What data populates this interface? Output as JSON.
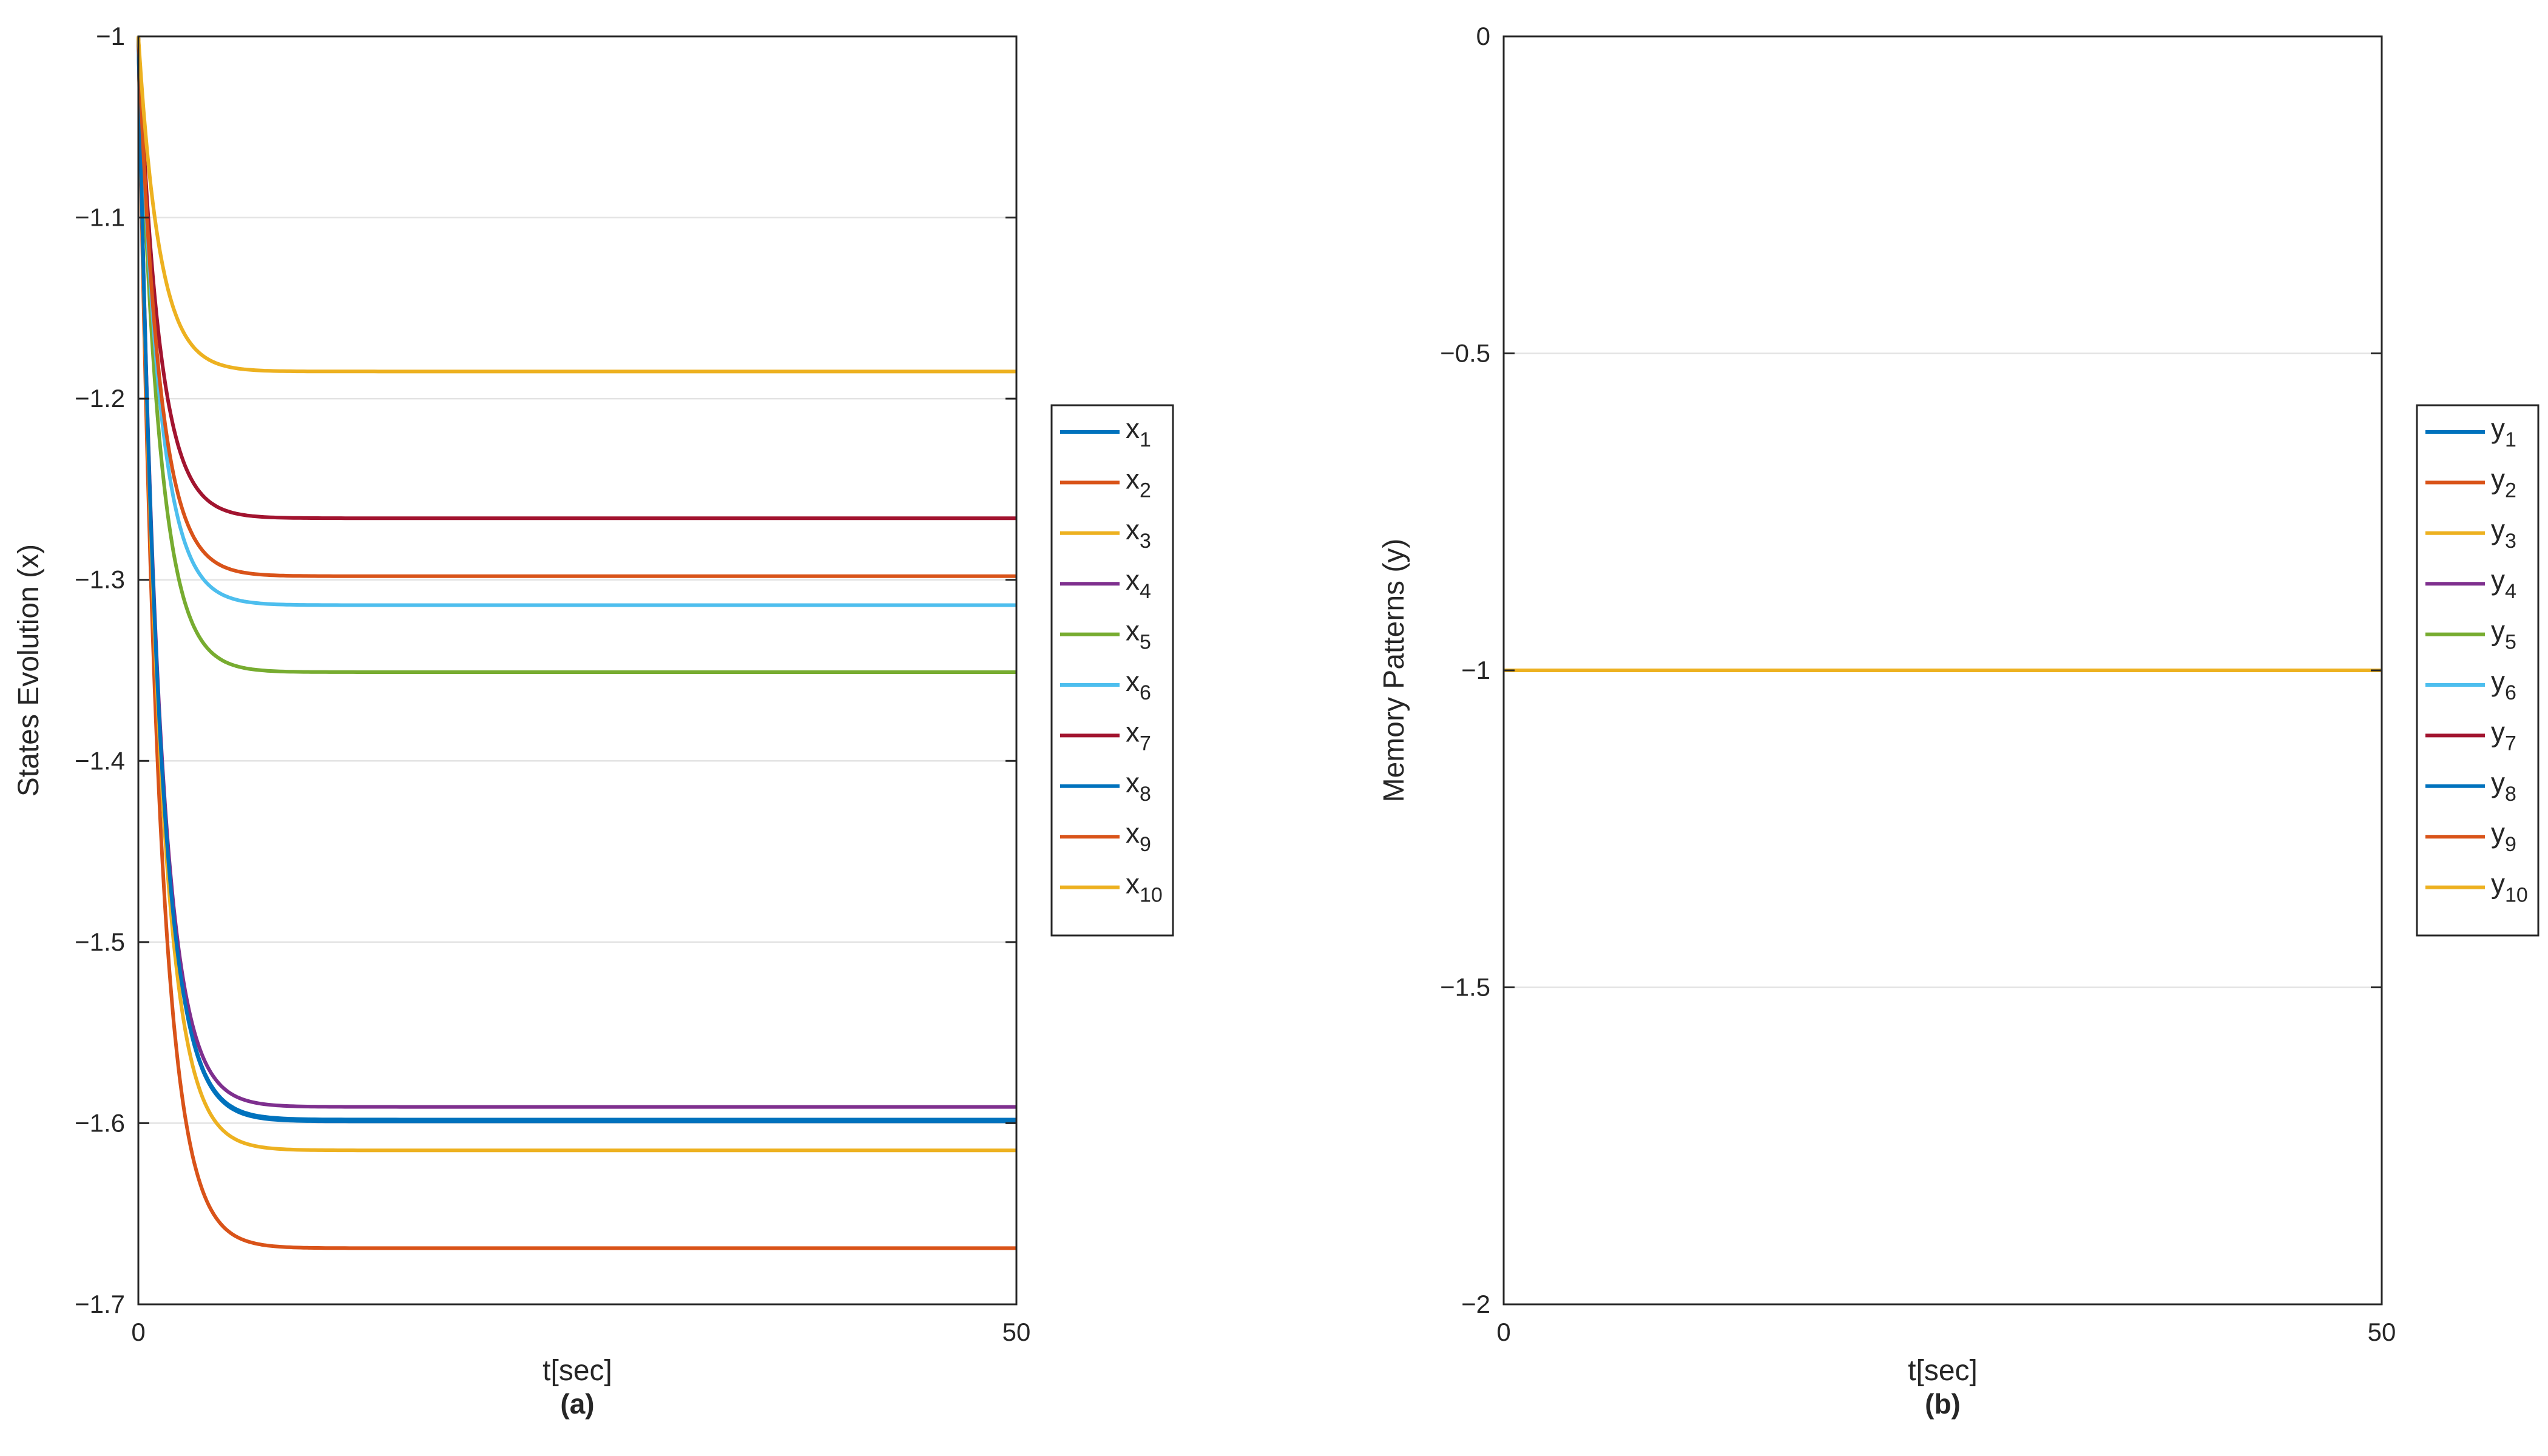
{
  "chart_data": [
    {
      "type": "line",
      "panel_label": "(a)",
      "xlabel": "t[sec]",
      "ylabel": "States Evolution (x)",
      "xlim": [
        0,
        50
      ],
      "ylim": [
        -1.7,
        -1.0
      ],
      "xticks": [
        0,
        50
      ],
      "xtick_labels": [
        "0",
        "50"
      ],
      "yticks": [
        -1.0,
        -1.1,
        -1.2,
        -1.3,
        -1.4,
        -1.5,
        -1.6,
        -1.7
      ],
      "ytick_labels": [
        "−1",
        "−1.1",
        "−1.2",
        "−1.3",
        "−1.4",
        "−1.5",
        "−1.6",
        "−1.7"
      ],
      "grid": "horizontal",
      "legend_position": "outside-right",
      "initial_value": -1.0,
      "series": [
        {
          "label_base": "x",
          "label_sub": "1",
          "color": "#0072BD",
          "final": -1.598,
          "tau": 1.2
        },
        {
          "label_base": "x",
          "label_sub": "2",
          "color": "#D95319",
          "final": -1.669,
          "tau": 1.2
        },
        {
          "label_base": "x",
          "label_sub": "3",
          "color": "#EDB120",
          "final": -1.615,
          "tau": 1.2
        },
        {
          "label_base": "x",
          "label_sub": "4",
          "color": "#7E2F8E",
          "final": -1.591,
          "tau": 1.2
        },
        {
          "label_base": "x",
          "label_sub": "5",
          "color": "#77AC30",
          "final": -1.351,
          "tau": 1.2
        },
        {
          "label_base": "x",
          "label_sub": "6",
          "color": "#4DBEEE",
          "final": -1.314,
          "tau": 1.2
        },
        {
          "label_base": "x",
          "label_sub": "7",
          "color": "#A2142F",
          "final": -1.266,
          "tau": 1.2
        },
        {
          "label_base": "x",
          "label_sub": "8",
          "color": "#0072BD",
          "final": -1.599,
          "tau": 1.2
        },
        {
          "label_base": "x",
          "label_sub": "9",
          "color": "#D95319",
          "final": -1.298,
          "tau": 1.2
        },
        {
          "label_base": "x",
          "label_sub": "10",
          "color": "#EDB120",
          "final": -1.185,
          "tau": 1.2
        }
      ]
    },
    {
      "type": "line",
      "panel_label": "(b)",
      "xlabel": "t[sec]",
      "ylabel": "Memory Patterns (y)",
      "xlim": [
        0,
        50
      ],
      "ylim": [
        -2.0,
        0.0
      ],
      "xticks": [
        0,
        50
      ],
      "xtick_labels": [
        "0",
        "50"
      ],
      "yticks": [
        0.0,
        -0.5,
        -1.0,
        -1.5,
        -2.0
      ],
      "ytick_labels": [
        "0",
        "−0.5",
        "−1",
        "−1.5",
        "−2"
      ],
      "grid": "horizontal",
      "legend_position": "outside-right",
      "initial_value": -1.0,
      "series": [
        {
          "label_base": "y",
          "label_sub": "1",
          "color": "#0072BD",
          "final": -1.0,
          "tau": 1.0
        },
        {
          "label_base": "y",
          "label_sub": "2",
          "color": "#D95319",
          "final": -1.0,
          "tau": 1.0
        },
        {
          "label_base": "y",
          "label_sub": "3",
          "color": "#EDB120",
          "final": -1.0,
          "tau": 1.0
        },
        {
          "label_base": "y",
          "label_sub": "4",
          "color": "#7E2F8E",
          "final": -1.0,
          "tau": 1.0
        },
        {
          "label_base": "y",
          "label_sub": "5",
          "color": "#77AC30",
          "final": -1.0,
          "tau": 1.0
        },
        {
          "label_base": "y",
          "label_sub": "6",
          "color": "#4DBEEE",
          "final": -1.0,
          "tau": 1.0
        },
        {
          "label_base": "y",
          "label_sub": "7",
          "color": "#A2142F",
          "final": -1.0,
          "tau": 1.0
        },
        {
          "label_base": "y",
          "label_sub": "8",
          "color": "#0072BD",
          "final": -1.0,
          "tau": 1.0
        },
        {
          "label_base": "y",
          "label_sub": "9",
          "color": "#D95319",
          "final": -1.0,
          "tau": 1.0
        },
        {
          "label_base": "y",
          "label_sub": "10",
          "color": "#EDB120",
          "final": -1.0,
          "tau": 1.0
        }
      ]
    }
  ]
}
